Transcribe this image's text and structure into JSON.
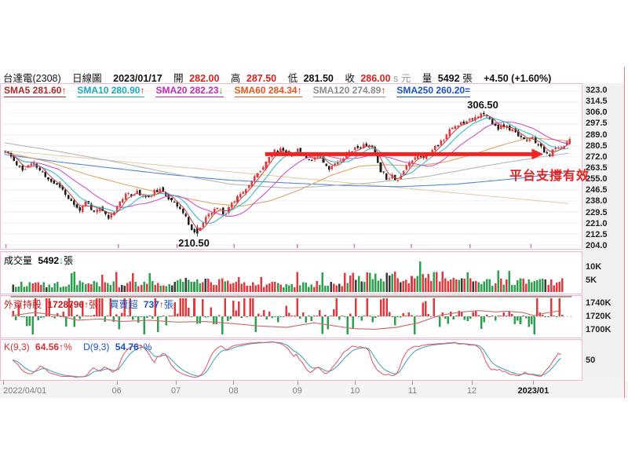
{
  "header": {
    "stock": "台達電(2308)",
    "chart_type": "日線圖",
    "date": "2023/01/17",
    "open_label": "開",
    "open": "282.00",
    "high_label": "高",
    "high": "287.50",
    "low_label": "低",
    "low": "281.50",
    "close_label": "收",
    "close": "286.00",
    "close_flag": "s",
    "currency_label": "元",
    "volume_label": "量",
    "volume": "5492",
    "volume_unit": "張",
    "change": "+4.50 (+1.60%)"
  },
  "sma_legend": [
    {
      "name": "SMA5",
      "text": "SMA5 281.60",
      "arrow": "↑",
      "color": "#b02828",
      "arrow_color": "#e01818",
      "line_color": "#c84848"
    },
    {
      "name": "SMA10",
      "text": "SMA10 280.90",
      "arrow": "↑",
      "color": "#17aabe",
      "arrow_color": "#e01818",
      "line_color": "#35bcca"
    },
    {
      "name": "SMA20",
      "text": "SMA20 282.23",
      "arrow": "↓",
      "color": "#c227bc",
      "arrow_color": "#13a045",
      "line_color": "#d14ec6"
    },
    {
      "name": "SMA60",
      "text": "SMA60 284.34",
      "arrow": "↑",
      "color": "#e2571b",
      "arrow_color": "#e01818",
      "line_color": "#dea262"
    },
    {
      "name": "SMA120",
      "text": "SMA120 274.89",
      "arrow": "↑",
      "color": "#8c8c8c",
      "arrow_color": "#e01818",
      "line_color": "#b4b4b4"
    },
    {
      "name": "SMA250",
      "text": "SMA250 260.20",
      "arrow": "=",
      "color": "#1b50c8",
      "arrow_color": "#1b50c8",
      "line_color": "#5585d0"
    }
  ],
  "panels": {
    "volume": {
      "label": "成交量",
      "value": "5492",
      "arrow": "↓",
      "unit": "張",
      "yticks": [
        {
          "label": "10K",
          "value": 10000
        },
        {
          "label": "5K",
          "value": 5000
        }
      ]
    },
    "foreign": {
      "label1": "外資持股",
      "value1": "1728796",
      "arrow1": "↑",
      "unit1": "張",
      "label2": "買賣超",
      "value2": "737",
      "arrow2": "↑",
      "unit2": "張",
      "yticks": [
        {
          "label": "1740K",
          "value": 1740
        },
        {
          "label": "1720K",
          "value": 1720
        },
        {
          "label": "1700K",
          "value": 1700
        }
      ]
    },
    "kd": {
      "k_label": "K(9,3)",
      "k_value": "64.56",
      "k_arrow": "↑",
      "k_unit": "%",
      "d_label": "D(9,3)",
      "d_value": "54.76",
      "d_arrow": "↑",
      "d_unit": "%",
      "yticks": [
        {
          "label": "50",
          "value": 50
        }
      ]
    }
  },
  "annotations": {
    "peak": "306.50",
    "trough": "210.50",
    "support_note": "平台支撐有效"
  },
  "x_axis": {
    "labels": [
      {
        "text": "2022/04/01",
        "t": 0.003,
        "bold": false,
        "align": "left"
      },
      {
        "text": "06",
        "t": 0.202,
        "bold": false,
        "align": "center"
      },
      {
        "text": "07",
        "t": 0.306,
        "bold": false,
        "align": "center"
      },
      {
        "text": "08",
        "t": 0.407,
        "bold": false,
        "align": "center"
      },
      {
        "text": "09",
        "t": 0.519,
        "bold": false,
        "align": "center"
      },
      {
        "text": "10",
        "t": 0.62,
        "bold": false,
        "align": "center"
      },
      {
        "text": "11",
        "t": 0.721,
        "bold": false,
        "align": "center"
      },
      {
        "text": "12",
        "t": 0.825,
        "bold": false,
        "align": "center"
      },
      {
        "text": "2023/01",
        "t": 0.933,
        "bold": true,
        "align": "center"
      }
    ]
  },
  "chart_data": {
    "type": "candlestick",
    "title": "台達電(2308) 日線圖",
    "date": "2023/01/17",
    "last": {
      "open": 282.0,
      "high": 287.5,
      "low": 281.5,
      "close": 286.0,
      "change": 4.5,
      "change_pct": 1.6,
      "volume": 5492
    },
    "ylim": [
      204.0,
      323.0
    ],
    "y_ticks": [
      323.0,
      314.5,
      306.0,
      297.5,
      289.0,
      280.5,
      272.0,
      263.5,
      255.0,
      246.5,
      238.0,
      229.5,
      221.0,
      212.5,
      204.0
    ],
    "x_range": [
      "2022/04/01",
      "2023/01/17"
    ],
    "n_candles": 198,
    "seed": 11,
    "price_path": [
      [
        0,
        276
      ],
      [
        0.01,
        272
      ],
      [
        0.03,
        262
      ],
      [
        0.05,
        267
      ],
      [
        0.075,
        255
      ],
      [
        0.1,
        248
      ],
      [
        0.115,
        238
      ],
      [
        0.13,
        231
      ],
      [
        0.145,
        237
      ],
      [
        0.155,
        228
      ],
      [
        0.165,
        233
      ],
      [
        0.185,
        225
      ],
      [
        0.2,
        236
      ],
      [
        0.215,
        243
      ],
      [
        0.235,
        245
      ],
      [
        0.25,
        240
      ],
      [
        0.27,
        247
      ],
      [
        0.285,
        242
      ],
      [
        0.3,
        238
      ],
      [
        0.315,
        228
      ],
      [
        0.33,
        217
      ],
      [
        0.338,
        212
      ],
      [
        0.345,
        218
      ],
      [
        0.36,
        227
      ],
      [
        0.375,
        233
      ],
      [
        0.39,
        228
      ],
      [
        0.4,
        236
      ],
      [
        0.42,
        246
      ],
      [
        0.435,
        252
      ],
      [
        0.45,
        261
      ],
      [
        0.465,
        271
      ],
      [
        0.475,
        276
      ],
      [
        0.49,
        278
      ],
      [
        0.505,
        274
      ],
      [
        0.52,
        277
      ],
      [
        0.53,
        272
      ],
      [
        0.545,
        270
      ],
      [
        0.555,
        275
      ],
      [
        0.565,
        268
      ],
      [
        0.575,
        262
      ],
      [
        0.585,
        268
      ],
      [
        0.6,
        273
      ],
      [
        0.615,
        278
      ],
      [
        0.63,
        280
      ],
      [
        0.645,
        282
      ],
      [
        0.655,
        274
      ],
      [
        0.665,
        262
      ],
      [
        0.675,
        256
      ],
      [
        0.685,
        258
      ],
      [
        0.695,
        254
      ],
      [
        0.705,
        261
      ],
      [
        0.715,
        268
      ],
      [
        0.73,
        274
      ],
      [
        0.745,
        272
      ],
      [
        0.76,
        279
      ],
      [
        0.775,
        286
      ],
      [
        0.79,
        294
      ],
      [
        0.805,
        298
      ],
      [
        0.82,
        301
      ],
      [
        0.835,
        304
      ],
      [
        0.845,
        305
      ],
      [
        0.855,
        302
      ],
      [
        0.865,
        297
      ],
      [
        0.875,
        294
      ],
      [
        0.885,
        296
      ],
      [
        0.895,
        293
      ],
      [
        0.905,
        290
      ],
      [
        0.915,
        288
      ],
      [
        0.925,
        284
      ],
      [
        0.935,
        286
      ],
      [
        0.945,
        281
      ],
      [
        0.955,
        275
      ],
      [
        0.962,
        273
      ],
      [
        0.972,
        277
      ],
      [
        0.982,
        280
      ],
      [
        0.992,
        282
      ],
      [
        1,
        286
      ]
    ],
    "key_points": {
      "peak": {
        "t": 0.845,
        "high": 306.5
      },
      "trough": {
        "t": 0.338,
        "low": 210.5
      }
    },
    "sma_values": {
      "SMA5": 281.6,
      "SMA10": 280.9,
      "SMA20": 282.23,
      "SMA60": 284.34,
      "SMA120": 274.89,
      "SMA250": 260.2
    },
    "sma60_anchors": [
      [
        0,
        276
      ],
      [
        0.08,
        268
      ],
      [
        0.15,
        258
      ],
      [
        0.22,
        250
      ],
      [
        0.3,
        242
      ],
      [
        0.37,
        236
      ],
      [
        0.42,
        234
      ],
      [
        0.47,
        238
      ],
      [
        0.52,
        246
      ],
      [
        0.58,
        258
      ],
      [
        0.63,
        265
      ],
      [
        0.68,
        266
      ],
      [
        0.73,
        265
      ],
      [
        0.78,
        268
      ],
      [
        0.83,
        274
      ],
      [
        0.88,
        281
      ],
      [
        0.93,
        287
      ],
      [
        1,
        284.3
      ]
    ],
    "sma120_anchors": [
      [
        0,
        283
      ],
      [
        0.1,
        276
      ],
      [
        0.2,
        268
      ],
      [
        0.3,
        259
      ],
      [
        0.4,
        251
      ],
      [
        0.5,
        248
      ],
      [
        0.55,
        249
      ],
      [
        0.65,
        252
      ],
      [
        0.75,
        257
      ],
      [
        0.85,
        265
      ],
      [
        0.95,
        272
      ],
      [
        1,
        274.9
      ]
    ],
    "sma250_anchors": [
      [
        0,
        274
      ],
      [
        0.1,
        268
      ],
      [
        0.2,
        263
      ],
      [
        0.3,
        258
      ],
      [
        0.4,
        254
      ],
      [
        0.5,
        252
      ],
      [
        0.6,
        250
      ],
      [
        0.7,
        249
      ],
      [
        0.8,
        251
      ],
      [
        0.9,
        255
      ],
      [
        1,
        260.2
      ]
    ],
    "trendline_anchors": [
      [
        0,
        277
      ],
      [
        1,
        236
      ]
    ],
    "support_line": {
      "price": 274.2,
      "t_start": 0.462,
      "t_end": 0.955
    },
    "volume_axis": {
      "unit": "張",
      "ticks": [
        10000,
        5000
      ],
      "last_volume": 5492
    },
    "foreign_axis": {
      "ticks": [
        1740,
        1720,
        1700
      ],
      "unit": "K張",
      "holdings_last": 1728796,
      "net_buy_last": 737
    },
    "foreign_line_anchors": [
      [
        0,
        1721
      ],
      [
        0.04,
        1726
      ],
      [
        0.08,
        1722
      ],
      [
        0.12,
        1714
      ],
      [
        0.16,
        1716
      ],
      [
        0.2,
        1712
      ],
      [
        0.25,
        1714
      ],
      [
        0.3,
        1711
      ],
      [
        0.35,
        1712
      ],
      [
        0.4,
        1709
      ],
      [
        0.45,
        1705
      ],
      [
        0.5,
        1703
      ],
      [
        0.55,
        1710
      ],
      [
        0.58,
        1706
      ],
      [
        0.62,
        1701
      ],
      [
        0.66,
        1700
      ],
      [
        0.7,
        1703
      ],
      [
        0.74,
        1710
      ],
      [
        0.78,
        1722
      ],
      [
        0.82,
        1727
      ],
      [
        0.85,
        1729
      ],
      [
        0.88,
        1727
      ],
      [
        0.9,
        1728
      ],
      [
        0.93,
        1726
      ],
      [
        0.95,
        1721
      ],
      [
        0.97,
        1725
      ],
      [
        1,
        1729
      ]
    ],
    "kd_last": {
      "k": 64.56,
      "d": 54.76
    }
  }
}
